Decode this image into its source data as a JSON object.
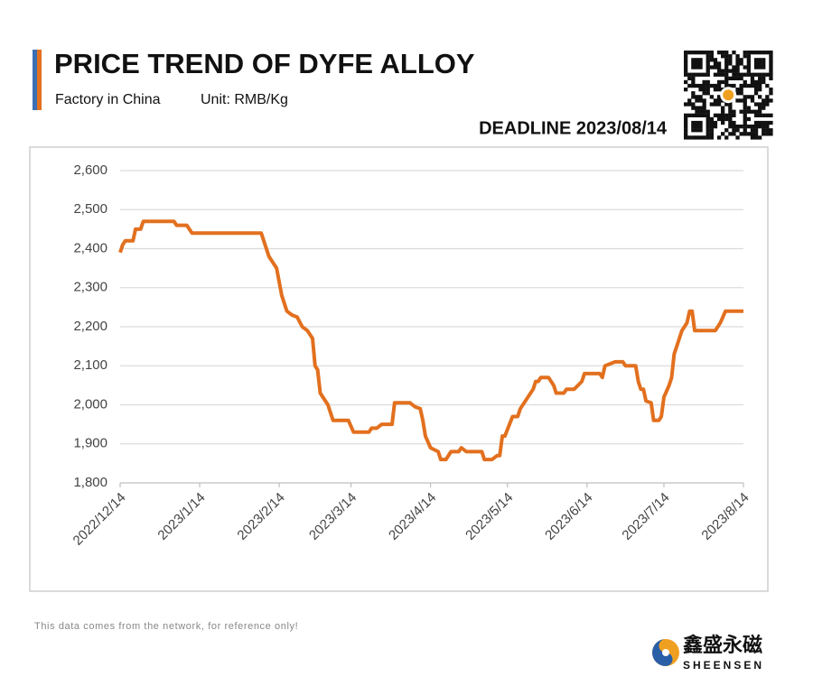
{
  "chart_data": {
    "type": "line",
    "title": "PRICE TREND OF DYFE ALLOY",
    "subtitle": "Factory in China",
    "unit": "Unit: RMB/Kg",
    "deadline": "DEADLINE 2023/08/14",
    "footnote": "This data comes from the network, for reference only!",
    "brand_cn": "鑫盛永磁",
    "brand_en": "SHEENSEN",
    "xlim": [
      "2022/12/14",
      "2023/8/14"
    ],
    "xticks": [
      "2022/12/14",
      "2023/1/14",
      "2023/2/14",
      "2023/3/14",
      "2023/4/14",
      "2023/5/14",
      "2023/6/14",
      "2023/7/14",
      "2023/8/14"
    ],
    "ylim": [
      1800,
      2600
    ],
    "yticks": [
      {
        "value": 1800,
        "label": "1,800"
      },
      {
        "value": 1900,
        "label": "1,900"
      },
      {
        "value": 2000,
        "label": "2,000"
      },
      {
        "value": 2100,
        "label": "2,100"
      },
      {
        "value": 2200,
        "label": "2,200"
      },
      {
        "value": 2300,
        "label": "2,300"
      },
      {
        "value": 2400,
        "label": "2,400"
      },
      {
        "value": 2500,
        "label": "2,500"
      },
      {
        "value": 2600,
        "label": "2,600"
      }
    ],
    "grid": true,
    "x": [
      "2022/12/14",
      "2022/12/15",
      "2022/12/16",
      "2022/12/19",
      "2022/12/20",
      "2022/12/22",
      "2022/12/23",
      "2023/1/4",
      "2023/1/5",
      "2023/1/9",
      "2023/1/11",
      "2023/2/7",
      "2023/2/10",
      "2023/2/13",
      "2023/2/15",
      "2023/2/17",
      "2023/2/19",
      "2023/2/21",
      "2023/2/23",
      "2023/2/25",
      "2023/2/27",
      "2023/2/28",
      "2023/3/1",
      "2023/3/2",
      "2023/3/5",
      "2023/3/7",
      "2023/3/13",
      "2023/3/15",
      "2023/3/21",
      "2023/3/22",
      "2023/3/24",
      "2023/3/26",
      "2023/3/30",
      "2023/3/31",
      "2023/4/6",
      "2023/4/8",
      "2023/4/10",
      "2023/4/11",
      "2023/4/12",
      "2023/4/14",
      "2023/4/17",
      "2023/4/18",
      "2023/4/20",
      "2023/4/22",
      "2023/4/25",
      "2023/4/26",
      "2023/4/28",
      "2023/5/4",
      "2023/5/5",
      "2023/5/8",
      "2023/5/10",
      "2023/5/11",
      "2023/5/12",
      "2023/5/13",
      "2023/5/16",
      "2023/5/18",
      "2023/5/19",
      "2023/5/24",
      "2023/5/25",
      "2023/5/26",
      "2023/5/27",
      "2023/5/30",
      "2023/6/1",
      "2023/6/2",
      "2023/6/5",
      "2023/6/6",
      "2023/6/9",
      "2023/6/12",
      "2023/6/13",
      "2023/6/19",
      "2023/6/20",
      "2023/6/21",
      "2023/6/23",
      "2023/6/25",
      "2023/6/28",
      "2023/6/29",
      "2023/7/3",
      "2023/7/4",
      "2023/7/5",
      "2023/7/6",
      "2023/7/7",
      "2023/7/9",
      "2023/7/10",
      "2023/7/12",
      "2023/7/13",
      "2023/7/14",
      "2023/7/16",
      "2023/7/17",
      "2023/7/18",
      "2023/7/19",
      "2023/7/21",
      "2023/7/22",
      "2023/7/23",
      "2023/7/24",
      "2023/7/25",
      "2023/7/26",
      "2023/8/3",
      "2023/8/5",
      "2023/8/7",
      "2023/8/14"
    ],
    "series": [
      {
        "name": "DyFe",
        "color": "#e2701f",
        "values": [
          2390,
          2410,
          2420,
          2420,
          2450,
          2450,
          2470,
          2470,
          2460,
          2460,
          2440,
          2440,
          2380,
          2350,
          2280,
          2240,
          2230,
          2225,
          2200,
          2190,
          2170,
          2100,
          2090,
          2030,
          2000,
          1960,
          1960,
          1930,
          1930,
          1940,
          1940,
          1950,
          1950,
          2005,
          2005,
          1995,
          1990,
          1960,
          1920,
          1890,
          1880,
          1860,
          1860,
          1880,
          1880,
          1890,
          1880,
          1880,
          1860,
          1860,
          1870,
          1870,
          1920,
          1920,
          1970,
          1970,
          1990,
          2040,
          2060,
          2060,
          2070,
          2070,
          2050,
          2030,
          2030,
          2040,
          2040,
          2060,
          2080,
          2080,
          2070,
          2100,
          2105,
          2110,
          2110,
          2100,
          2100,
          2060,
          2040,
          2040,
          2010,
          2005,
          1960,
          1960,
          1970,
          2020,
          2050,
          2070,
          2130,
          2150,
          2190,
          2200,
          2210,
          2240,
          2240,
          2190,
          2190,
          2210,
          2240,
          2240
        ]
      }
    ]
  }
}
